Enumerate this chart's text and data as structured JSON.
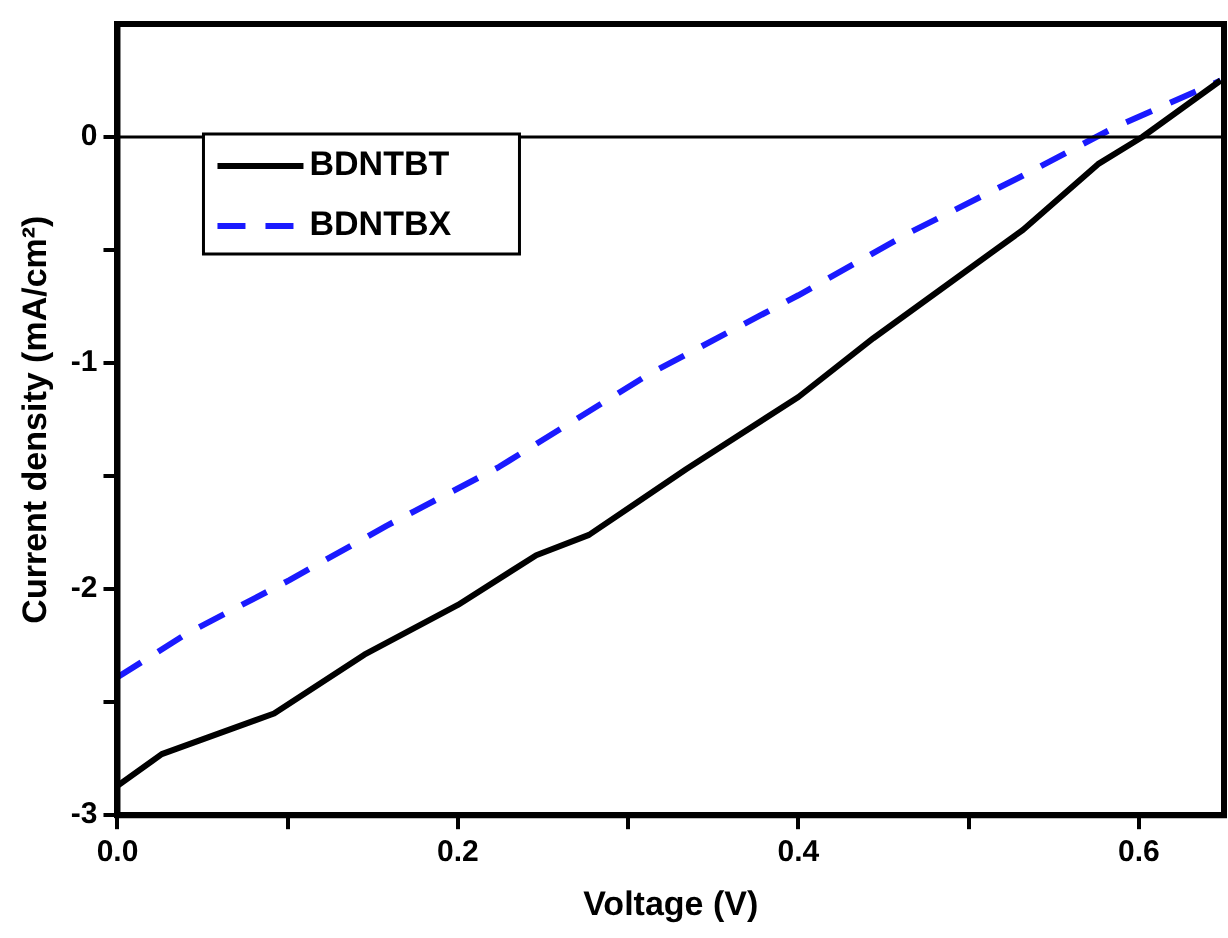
{
  "chart_data": {
    "type": "line",
    "xlabel": "Voltage (V)",
    "ylabel": "Current density (mA/cm²)",
    "xlim": [
      0,
      0.65
    ],
    "ylim": [
      -3,
      0.5
    ],
    "xticks": [
      {
        "value": 0,
        "label": "0.0"
      },
      {
        "value": 0.1,
        "label": null
      },
      {
        "value": 0.2,
        "label": "0.2"
      },
      {
        "value": 0.3,
        "label": null
      },
      {
        "value": 0.4,
        "label": "0.4"
      },
      {
        "value": 0.5,
        "label": null
      },
      {
        "value": 0.6,
        "label": "0.6"
      }
    ],
    "yticks": [
      -3,
      {
        "value": -2.5,
        "label": null
      },
      -2,
      {
        "value": -1.5,
        "label": null
      },
      -1,
      {
        "value": -0.5,
        "label": null
      },
      0
    ],
    "grid": false,
    "legend": "top left",
    "marker": "none",
    "ref_lines": [
      {
        "axis": "y",
        "value": 0,
        "color": "#000000"
      }
    ],
    "series": [
      {
        "name": "BDNTBT",
        "color": "#000000",
        "line_style": "solid",
        "x": [
          0,
          0.026,
          0.092,
          0.145,
          0.2,
          0.246,
          0.277,
          0.334,
          0.4,
          0.444,
          0.488,
          0.532,
          0.576,
          0.602,
          0.648
        ],
        "values": [
          -2.87,
          -2.73,
          -2.55,
          -2.29,
          -2.07,
          -1.85,
          -1.76,
          -1.47,
          -1.15,
          -0.89,
          -0.65,
          -0.41,
          -0.12,
          0,
          0.25
        ]
      },
      {
        "name": "BDNTBX",
        "color": "#1a1aff",
        "line_style": "dashed",
        "x": [
          0,
          0.04,
          0.101,
          0.158,
          0.224,
          0.312,
          0.4,
          0.466,
          0.532,
          0.585,
          0.648
        ],
        "values": [
          -2.39,
          -2.2,
          -1.96,
          -1.72,
          -1.46,
          -1.05,
          -0.7,
          -0.42,
          -0.17,
          0.04,
          0.25
        ]
      }
    ]
  }
}
